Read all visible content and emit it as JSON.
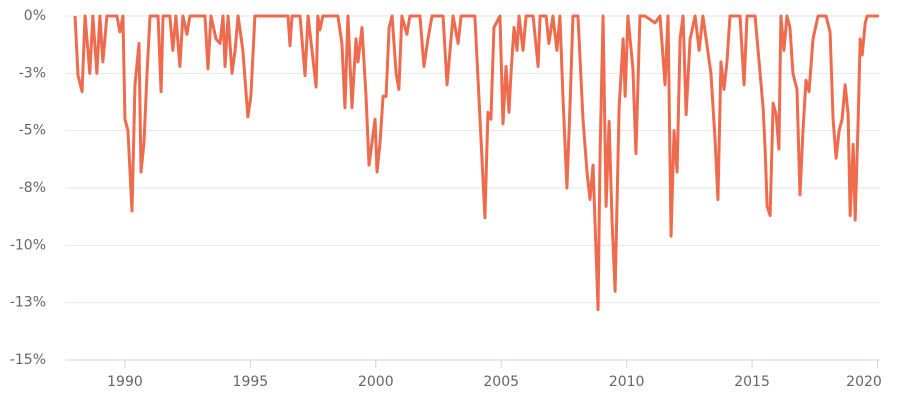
{
  "chart_data": {
    "type": "line",
    "x": [
      1988.01,
      1988.13,
      1988.29,
      1988.41,
      1988.6,
      1988.72,
      1988.88,
      1989.0,
      1989.12,
      1989.28,
      1989.68,
      1989.8,
      1989.92,
      1990.0,
      1990.12,
      1990.28,
      1990.4,
      1990.56,
      1990.64,
      1990.76,
      1990.88,
      1991.0,
      1991.32,
      1991.44,
      1991.52,
      1991.79,
      1991.91,
      1992.03,
      1992.19,
      1992.31,
      1992.47,
      1992.59,
      1993.19,
      1993.31,
      1993.43,
      1993.63,
      1993.79,
      1993.91,
      1993.99,
      1994.11,
      1994.27,
      1994.39,
      1994.51,
      1994.7,
      1994.9,
      1995.02,
      1995.18,
      1996.5,
      1996.58,
      1996.66,
      1996.98,
      1997.18,
      1997.3,
      1997.62,
      1997.69,
      1997.77,
      1997.89,
      1998.49,
      1998.65,
      1998.77,
      1998.89,
      1999.05,
      1999.21,
      1999.29,
      1999.45,
      1999.61,
      1999.73,
      1999.85,
      1999.97,
      2000.05,
      2000.17,
      2000.29,
      2000.41,
      2000.53,
      2000.65,
      2000.81,
      2000.92,
      2001.04,
      2001.24,
      2001.36,
      2001.76,
      2001.92,
      2002.08,
      2002.24,
      2002.68,
      2002.84,
      2002.96,
      2003.08,
      2003.28,
      2003.4,
      2003.76,
      2003.95,
      2004.35,
      2004.47,
      2004.59,
      2004.71,
      2004.95,
      2005.07,
      2005.19,
      2005.31,
      2005.39,
      2005.51,
      2005.63,
      2005.71,
      2005.87,
      2005.99,
      2006.27,
      2006.47,
      2006.55,
      2006.79,
      2006.9,
      2007.06,
      2007.22,
      2007.34,
      2007.46,
      2007.62,
      2007.74,
      2007.86,
      2008.06,
      2008.26,
      2008.42,
      2008.54,
      2008.66,
      2008.86,
      2008.94,
      2009.06,
      2009.18,
      2009.3,
      2009.42,
      2009.54,
      2009.7,
      2009.86,
      2009.94,
      2010.05,
      2010.25,
      2010.37,
      2010.53,
      2010.73,
      2011.13,
      2011.33,
      2011.53,
      2011.65,
      2011.77,
      2011.89,
      2012.01,
      2012.13,
      2012.25,
      2012.37,
      2012.53,
      2012.73,
      2012.89,
      2013.04,
      2013.36,
      2013.52,
      2013.64,
      2013.76,
      2013.88,
      2014.0,
      2014.12,
      2014.52,
      2014.68,
      2014.8,
      2015.12,
      2015.44,
      2015.52,
      2015.6,
      2015.72,
      2015.84,
      2015.96,
      2016.07,
      2016.15,
      2016.27,
      2016.39,
      2016.51,
      2016.63,
      2016.79,
      2016.91,
      2017.03,
      2017.15,
      2017.27,
      2017.43,
      2017.63,
      2017.95,
      2018.11,
      2018.23,
      2018.35,
      2018.47,
      2018.59,
      2018.71,
      2018.83,
      2018.91,
      2019.03,
      2019.11,
      2019.23,
      2019.31,
      2019.39,
      2019.51,
      2019.59,
      2020.06
    ],
    "series": [
      {
        "color": "#ef6b4e",
        "values": [
          0,
          -2.6,
          -3.3,
          0,
          -2.5,
          0,
          -2.5,
          0,
          -2,
          0,
          0,
          -0.7,
          0,
          -4.5,
          -5,
          -8.5,
          -3,
          -1.2,
          -6.8,
          -5.5,
          -2.5,
          0,
          0,
          -3.3,
          0,
          0,
          -1.5,
          0,
          -2.2,
          0,
          -0.8,
          0,
          0,
          -2.3,
          0,
          -1,
          -1.2,
          0,
          -2.2,
          0,
          -2.5,
          -1.5,
          0,
          -1.5,
          -4.4,
          -3.5,
          0,
          0,
          -1.3,
          0,
          0,
          -2.6,
          0,
          -3.1,
          0,
          -0.6,
          0,
          0,
          -1.2,
          -4,
          0,
          -4,
          -1,
          -2,
          -0.5,
          -3.5,
          -6.5,
          -5.5,
          -4.5,
          -6.8,
          -5.5,
          -3.5,
          -3.5,
          -0.5,
          0,
          -2.5,
          -3.2,
          0,
          -0.8,
          0,
          0,
          -2.2,
          -1,
          0,
          0,
          -3,
          -1.5,
          0,
          -1.2,
          0,
          0,
          0,
          -8.8,
          -4.2,
          -4.5,
          -0.5,
          0,
          -4.7,
          -2.2,
          -4.2,
          -2.5,
          -0.5,
          -1.5,
          0,
          -1.5,
          0,
          0,
          -2.2,
          0,
          0,
          -1.2,
          0,
          -1.5,
          0,
          -3.5,
          -7.5,
          -4,
          0,
          0,
          -4.5,
          -6.8,
          -8,
          -6.5,
          -12.8,
          -6,
          0,
          -8.3,
          -4.6,
          -9,
          -12,
          -4,
          -1,
          -3.5,
          0,
          -2.3,
          -6,
          0,
          0,
          -0.3,
          0,
          -3,
          0,
          -9.6,
          -5,
          -6.8,
          -1,
          0,
          -4.3,
          -1,
          0,
          -1.5,
          0,
          -2.5,
          -5.3,
          -8,
          -2,
          -3.2,
          -2,
          0,
          0,
          -3,
          0,
          0,
          -4,
          -5.8,
          -8.3,
          -8.7,
          -3.8,
          -4.3,
          -5.8,
          0,
          -1.5,
          0,
          -0.5,
          -2.5,
          -3.2,
          -7.8,
          -5,
          -2.8,
          -3.3,
          -1,
          0,
          0,
          -0.7,
          -4.5,
          -6.2,
          -5,
          -4.5,
          -3,
          -4.3,
          -8.7,
          -5.6,
          -8.9,
          -4.5,
          -1,
          -1.7,
          -0.3,
          0,
          0
        ]
      }
    ],
    "xlim": [
      1987.61,
      2020.1
    ],
    "xticks": [
      1990,
      1995,
      2000,
      2005,
      2010,
      2015,
      2020
    ],
    "ylim": [
      -15,
      0
    ],
    "yticks": [
      {
        "value": 0,
        "label": "0%"
      },
      {
        "value": -2.5,
        "label": "-3%"
      },
      {
        "value": -5,
        "label": "-5%"
      },
      {
        "value": -7.5,
        "label": "-8%"
      },
      {
        "value": -10,
        "label": "-10%"
      },
      {
        "value": -12.5,
        "label": "-13%"
      },
      {
        "value": -15,
        "label": "-15%"
      }
    ],
    "grid": true
  }
}
